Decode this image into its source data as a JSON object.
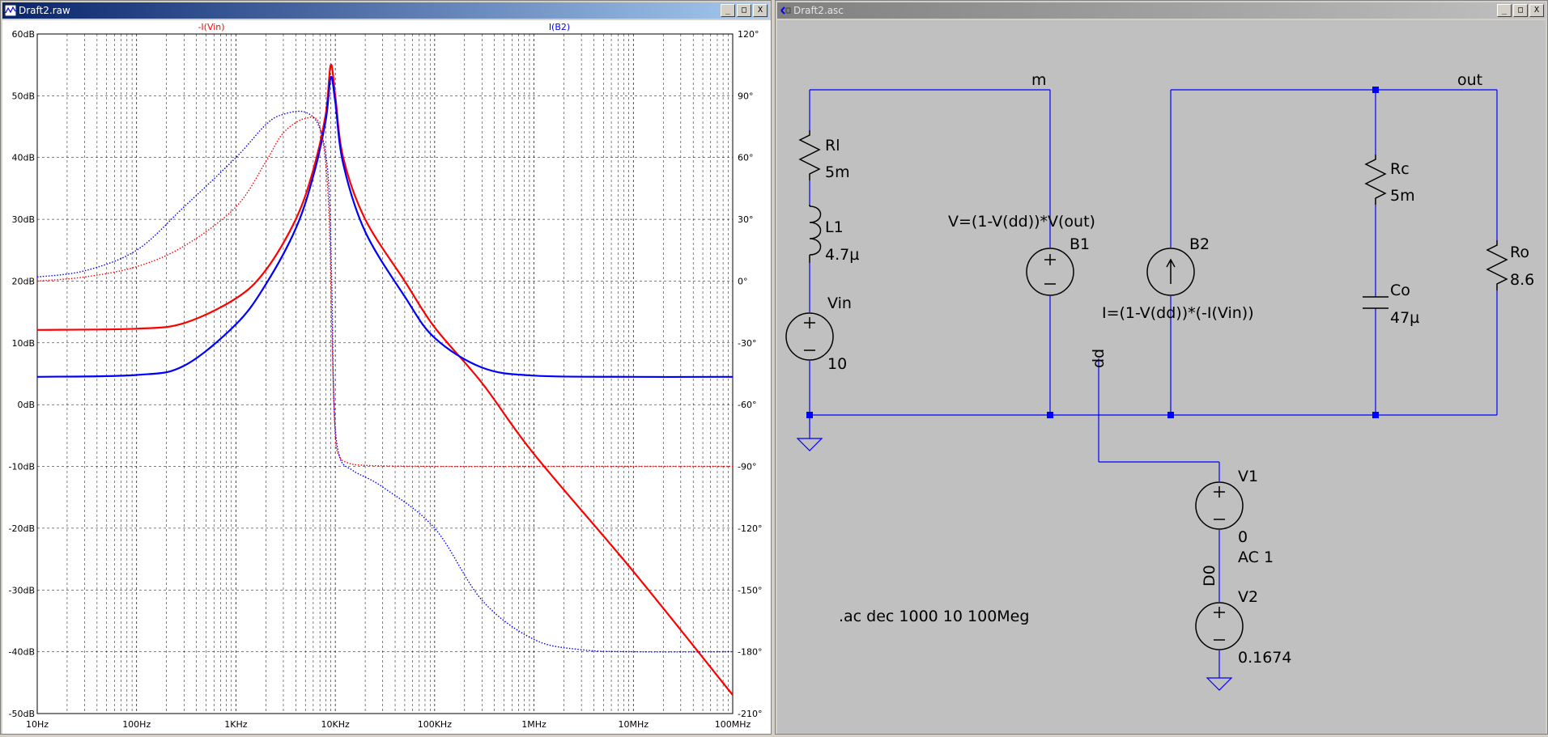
{
  "plot_window": {
    "title": "Draft2.raw",
    "buttons": {
      "minimize": "_",
      "maximize": "□",
      "close": "X"
    },
    "traces": [
      {
        "name": "-I(Vin)",
        "color": "#ff0000"
      },
      {
        "name": "I(B2)",
        "color": "#0000ff"
      }
    ]
  },
  "schematic_window": {
    "title": "Draft2.asc",
    "buttons": {
      "minimize": "_",
      "maximize": "□",
      "close": "X"
    },
    "nets": {
      "m": "m",
      "out": "out",
      "dd": "dd",
      "d0": "D0"
    },
    "components": {
      "rl": {
        "name": "Rl",
        "value": "5m"
      },
      "l1": {
        "name": "L1",
        "value": "4.7µ"
      },
      "vin": {
        "name": "Vin",
        "value": "10"
      },
      "b1": {
        "name": "B1",
        "expr": "V=(1-V(dd))*V(out)"
      },
      "b2": {
        "name": "B2",
        "expr": "I=(1-V(dd))*(-I(Vin))"
      },
      "rc": {
        "name": "Rc",
        "value": "5m"
      },
      "co": {
        "name": "Co",
        "value": "47µ"
      },
      "ro": {
        "name": "Ro",
        "value": "8.6"
      },
      "v1": {
        "name": "V1",
        "value": "0",
        "ac": "AC 1"
      },
      "v2": {
        "name": "V2",
        "value": "0.1674"
      }
    },
    "directive": ".ac dec 1000 10 100Meg"
  },
  "chart_data": {
    "type": "line",
    "x_scale": "log",
    "xlim": [
      10,
      100000000
    ],
    "x_ticks": [
      "10Hz",
      "100Hz",
      "1KHz",
      "10KHz",
      "100KHz",
      "1MHz",
      "10MHz",
      "100MHz"
    ],
    "y_left_range": [
      -50,
      60
    ],
    "y_left_ticks": [
      "60dB",
      "50dB",
      "40dB",
      "30dB",
      "20dB",
      "10dB",
      "0dB",
      "-10dB",
      "-20dB",
      "-30dB",
      "-40dB",
      "-50dB"
    ],
    "y_right_range": [
      -210,
      120
    ],
    "y_right_ticks": [
      "120°",
      "90°",
      "60°",
      "30°",
      "0°",
      "-30°",
      "-60°",
      "-90°",
      "-120°",
      "-150°",
      "-180°",
      "-210°"
    ],
    "grid": true,
    "series": [
      {
        "name": "-I(Vin)",
        "quantity": "magnitude",
        "axis": "left",
        "color": "#ff0000",
        "style": "solid",
        "x": [
          10,
          100,
          300,
          1000,
          2000,
          4000,
          6000,
          8000,
          9000,
          10000,
          12000,
          20000,
          50000,
          100000,
          300000,
          1000000,
          10000000,
          100000000
        ],
        "y": [
          12.1,
          12.3,
          13.2,
          17.2,
          21.8,
          30,
          38,
          47,
          55,
          50,
          40,
          30,
          20,
          12.5,
          3.5,
          -8,
          -27,
          -47
        ]
      },
      {
        "name": "I(B2)",
        "quantity": "magnitude",
        "axis": "left",
        "color": "#0000ff",
        "style": "solid",
        "x": [
          10,
          100,
          300,
          1000,
          2000,
          4000,
          6000,
          8000,
          9000,
          10000,
          12000,
          20000,
          50000,
          100000,
          300000,
          1000000,
          10000000,
          100000000
        ],
        "y": [
          4.5,
          4.8,
          6.3,
          13,
          19.5,
          28.5,
          37,
          46,
          53,
          49,
          39,
          28,
          17.5,
          10.8,
          6,
          4.7,
          4.5,
          4.5
        ]
      },
      {
        "name": "-I(Vin)",
        "quantity": "phase",
        "axis": "right",
        "color": "#ff0000",
        "style": "dotted",
        "x": [
          10,
          30,
          100,
          300,
          1000,
          2000,
          3000,
          5000,
          7000,
          8500,
          9300,
          10000,
          11000,
          13000,
          20000,
          100000,
          1000000,
          100000000
        ],
        "y": [
          0,
          2,
          7,
          17,
          36,
          58,
          72,
          79,
          75,
          40,
          -30,
          -75,
          -85,
          -88,
          -89.5,
          -90,
          -90,
          -90
        ]
      },
      {
        "name": "I(B2)",
        "quantity": "phase",
        "axis": "right",
        "color": "#0000ff",
        "style": "dotted",
        "x": [
          10,
          30,
          100,
          300,
          1000,
          2000,
          3000,
          5000,
          7000,
          8500,
          9200,
          9700,
          11000,
          15000,
          30000,
          100000,
          300000,
          1000000,
          3000000,
          10000000,
          100000000
        ],
        "y": [
          2,
          5,
          15,
          36,
          60,
          76,
          81,
          82,
          74,
          50,
          0,
          -60,
          -85,
          -92,
          -100,
          -120,
          -155,
          -174,
          -179,
          -180,
          -180
        ]
      }
    ]
  }
}
